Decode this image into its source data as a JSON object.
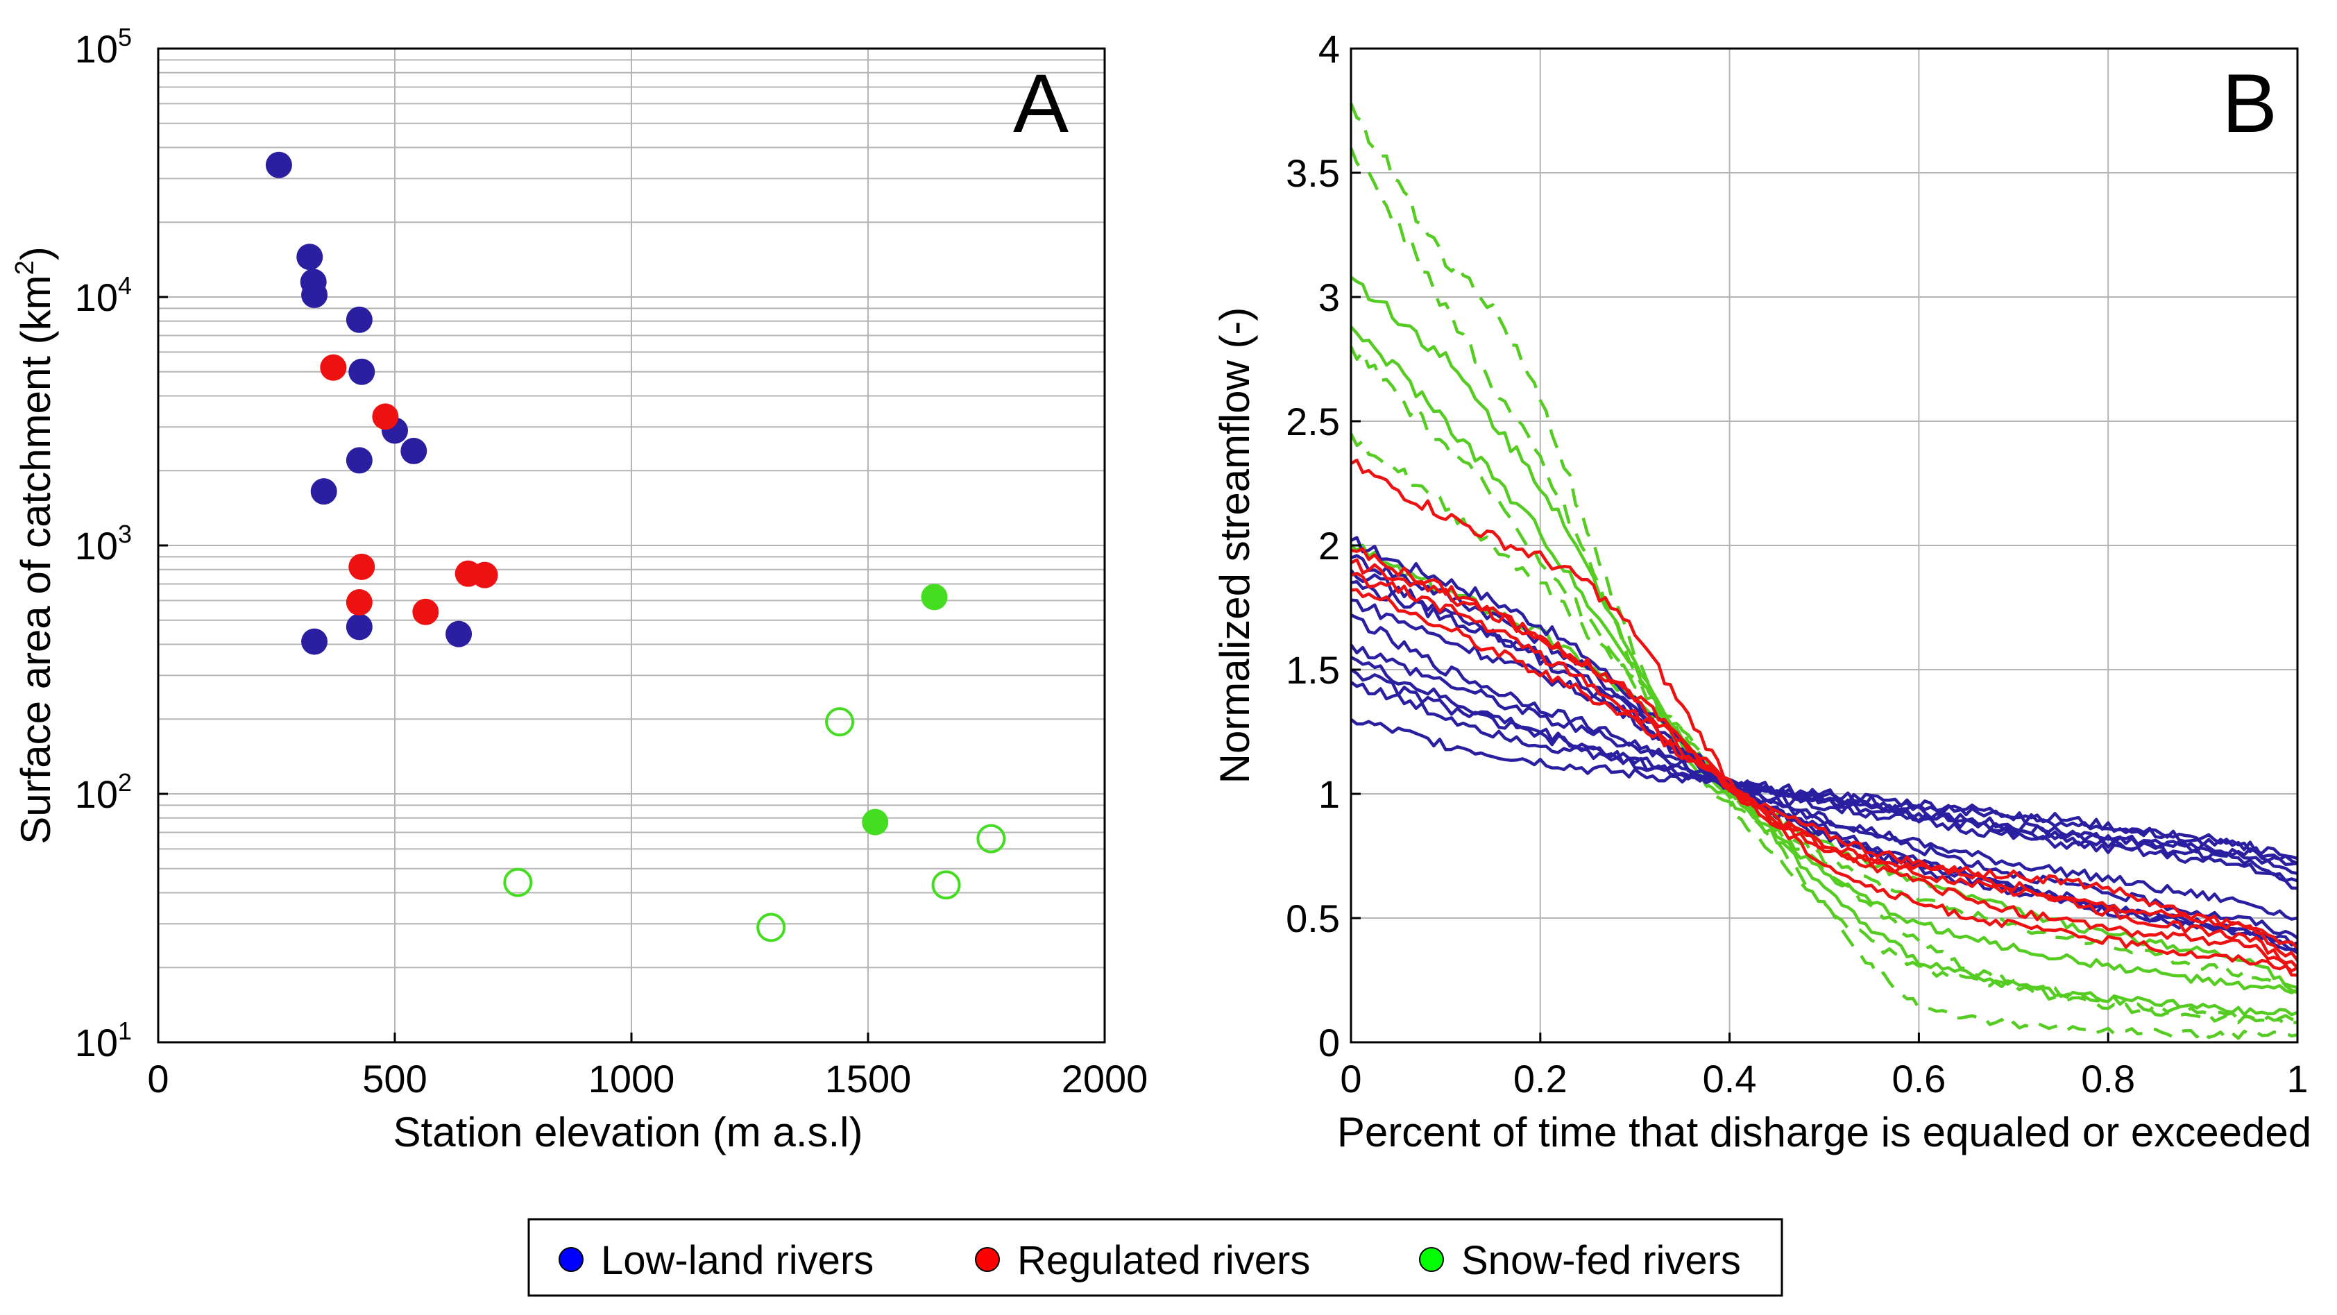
{
  "legend": {
    "items": [
      {
        "label": "Low-land rivers",
        "color": "#0000ff"
      },
      {
        "label": "Regulated rivers",
        "color": "#ff0000"
      },
      {
        "label": "Snow-fed rivers",
        "color": "#00ff00"
      }
    ]
  },
  "chart_data": [
    {
      "type": "scatter",
      "panel_label": "A",
      "xlabel": "Station elevation (m a.s.l)",
      "ylabel": "Surface area of catchment (km",
      "ylabel_sup": "2",
      "ylabel_end": ")",
      "xlim": [
        0,
        2000
      ],
      "ylim": [
        10,
        100000
      ],
      "yscale": "log",
      "xticks": [
        0,
        500,
        1000,
        1500,
        2000
      ],
      "xtick_labels": [
        "0",
        "500",
        "1000",
        "1500",
        "2000"
      ],
      "ytick_base": "10",
      "ytick_exponents": [
        "1",
        "2",
        "3",
        "4",
        "5"
      ],
      "grid": true,
      "series": [
        {
          "name": "Low-land rivers",
          "color": "#2a1fa0",
          "filled": true,
          "points": [
            [
              255,
              34000
            ],
            [
              320,
              14500
            ],
            [
              328,
              11500
            ],
            [
              330,
              10200
            ],
            [
              425,
              8100
            ],
            [
              430,
              5000
            ],
            [
              500,
              2900
            ],
            [
              540,
              2400
            ],
            [
              425,
              2200
            ],
            [
              350,
              1650
            ],
            [
              330,
              410
            ],
            [
              425,
              470
            ],
            [
              635,
              440
            ]
          ]
        },
        {
          "name": "Regulated rivers",
          "color": "#ee1111",
          "filled": true,
          "points": [
            [
              370,
              5200
            ],
            [
              480,
              3300
            ],
            [
              430,
              820
            ],
            [
              425,
              590
            ],
            [
              655,
              770
            ],
            [
              690,
              760
            ],
            [
              565,
              540
            ]
          ]
        },
        {
          "name": "Snow-fed rivers (filled)",
          "color": "#44dd22",
          "filled": true,
          "points": [
            [
              1640,
              620
            ],
            [
              1515,
              77
            ]
          ]
        },
        {
          "name": "Snow-fed rivers (open)",
          "color": "#44dd22",
          "filled": false,
          "points": [
            [
              1440,
              195
            ],
            [
              1760,
              66
            ],
            [
              760,
              44
            ],
            [
              1665,
              43
            ],
            [
              1295,
              29
            ]
          ]
        }
      ]
    },
    {
      "type": "line",
      "panel_label": "B",
      "xlabel": "Percent of time that disharge is equaled or exceeded",
      "ylabel": "Normalized streamflow (-)",
      "xlim": [
        0,
        1
      ],
      "ylim": [
        0,
        4
      ],
      "xticks": [
        0,
        0.2,
        0.4,
        0.6,
        0.8,
        1
      ],
      "xtick_labels": [
        "0",
        "0.2",
        "0.4",
        "0.6",
        "0.8",
        "1"
      ],
      "yticks": [
        0,
        0.5,
        1,
        1.5,
        2,
        2.5,
        3,
        3.5,
        4
      ],
      "ytick_labels": [
        "0",
        "0.5",
        "1",
        "1.5",
        "2",
        "2.5",
        "3",
        "3.5",
        "4"
      ],
      "grid": true,
      "x": [
        0,
        0.05,
        0.1,
        0.15,
        0.2,
        0.25,
        0.3,
        0.35,
        0.4,
        0.45,
        0.5,
        0.55,
        0.6,
        0.65,
        0.7,
        0.75,
        0.8,
        0.85,
        0.9,
        0.95,
        1.0
      ],
      "series": [
        {
          "group": "lowland",
          "color": "#2a1fa0",
          "dashed": false,
          "values": [
            2.02,
            1.93,
            1.86,
            1.78,
            1.68,
            1.55,
            1.38,
            1.2,
            1.03,
            0.92,
            0.83,
            0.76,
            0.7,
            0.65,
            0.61,
            0.57,
            0.53,
            0.49,
            0.46,
            0.43,
            0.38
          ]
        },
        {
          "group": "lowland",
          "color": "#2a1fa0",
          "dashed": false,
          "values": [
            1.95,
            1.88,
            1.8,
            1.72,
            1.62,
            1.5,
            1.35,
            1.18,
            1.02,
            0.93,
            0.86,
            0.79,
            0.73,
            0.68,
            0.63,
            0.59,
            0.55,
            0.51,
            0.48,
            0.45,
            0.4
          ]
        },
        {
          "group": "lowland",
          "color": "#2a1fa0",
          "dashed": false,
          "values": [
            1.85,
            1.78,
            1.71,
            1.64,
            1.56,
            1.46,
            1.33,
            1.17,
            1.02,
            0.95,
            0.9,
            0.85,
            0.8,
            0.76,
            0.72,
            0.69,
            0.66,
            0.62,
            0.59,
            0.56,
            0.5
          ]
        },
        {
          "group": "lowland",
          "color": "#2a1fa0",
          "dashed": false,
          "values": [
            1.78,
            1.7,
            1.62,
            1.55,
            1.48,
            1.4,
            1.3,
            1.15,
            1.02,
            0.98,
            0.95,
            0.92,
            0.89,
            0.86,
            0.83,
            0.8,
            0.78,
            0.76,
            0.73,
            0.71,
            0.62
          ]
        },
        {
          "group": "lowland",
          "color": "#2a1fa0",
          "dashed": false,
          "values": [
            1.72,
            1.6,
            1.5,
            1.42,
            1.35,
            1.28,
            1.2,
            1.12,
            1.05,
            1.01,
            0.98,
            0.95,
            0.93,
            0.9,
            0.87,
            0.85,
            0.82,
            0.8,
            0.78,
            0.76,
            0.72
          ]
        },
        {
          "group": "lowland",
          "color": "#2a1fa0",
          "dashed": false,
          "values": [
            1.55,
            1.46,
            1.38,
            1.31,
            1.25,
            1.19,
            1.14,
            1.09,
            1.04,
            1.01,
            0.98,
            0.95,
            0.92,
            0.89,
            0.86,
            0.84,
            0.82,
            0.8,
            0.78,
            0.75,
            0.68
          ]
        },
        {
          "group": "lowland",
          "color": "#2a1fa0",
          "dashed": false,
          "values": [
            1.5,
            1.42,
            1.35,
            1.29,
            1.23,
            1.18,
            1.13,
            1.08,
            1.04,
            1.0,
            0.97,
            0.94,
            0.91,
            0.88,
            0.85,
            0.82,
            0.8,
            0.78,
            0.76,
            0.73,
            0.65
          ]
        },
        {
          "group": "lowland",
          "color": "#2a1fa0",
          "dashed": false,
          "values": [
            1.45,
            1.38,
            1.31,
            1.25,
            1.2,
            1.16,
            1.12,
            1.08,
            1.04,
            1.01,
            0.99,
            0.97,
            0.95,
            0.93,
            0.91,
            0.88,
            0.86,
            0.84,
            0.82,
            0.79,
            0.74
          ]
        },
        {
          "group": "lowland",
          "color": "#2a1fa0",
          "dashed": false,
          "values": [
            1.3,
            1.25,
            1.2,
            1.16,
            1.13,
            1.1,
            1.08,
            1.06,
            1.04,
            1.02,
            1.0,
            0.98,
            0.96,
            0.94,
            0.92,
            0.9,
            0.87,
            0.84,
            0.81,
            0.78,
            0.72
          ]
        },
        {
          "group": "lowland",
          "color": "#2a1fa0",
          "dashed": false,
          "values": [
            1.9,
            1.82,
            1.73,
            1.64,
            1.54,
            1.43,
            1.3,
            1.15,
            1.02,
            0.92,
            0.84,
            0.77,
            0.71,
            0.66,
            0.62,
            0.58,
            0.54,
            0.5,
            0.47,
            0.44,
            0.36
          ]
        },
        {
          "group": "lowland",
          "color": "#2a1fa0",
          "dashed": false,
          "values": [
            1.6,
            1.52,
            1.45,
            1.38,
            1.31,
            1.25,
            1.19,
            1.12,
            1.04,
            0.97,
            0.9,
            0.84,
            0.78,
            0.73,
            0.68,
            0.64,
            0.6,
            0.56,
            0.52,
            0.49,
            0.42
          ]
        },
        {
          "group": "regulated",
          "color": "#ee1111",
          "dashed": false,
          "values": [
            2.33,
            2.22,
            2.12,
            2.03,
            1.95,
            1.85,
            1.65,
            1.35,
            1.05,
            0.92,
            0.84,
            0.77,
            0.72,
            0.68,
            0.63,
            0.58,
            0.52,
            0.48,
            0.45,
            0.42,
            0.3
          ]
        },
        {
          "group": "regulated",
          "color": "#ee1111",
          "dashed": false,
          "values": [
            1.93,
            1.87,
            1.8,
            1.72,
            1.63,
            1.52,
            1.4,
            1.22,
            1.03,
            0.9,
            0.8,
            0.73,
            0.68,
            0.64,
            0.61,
            0.58,
            0.55,
            0.52,
            0.49,
            0.46,
            0.38
          ]
        },
        {
          "group": "regulated",
          "color": "#ee1111",
          "dashed": false,
          "values": [
            1.88,
            1.82,
            1.75,
            1.66,
            1.56,
            1.45,
            1.32,
            1.17,
            1.02,
            0.88,
            0.78,
            0.72,
            0.7,
            0.69,
            0.67,
            0.65,
            0.62,
            0.55,
            0.5,
            0.46,
            0.33
          ]
        },
        {
          "group": "regulated",
          "color": "#ee1111",
          "dashed": false,
          "values": [
            1.82,
            1.75,
            1.67,
            1.58,
            1.49,
            1.4,
            1.3,
            1.16,
            1.02,
            0.87,
            0.72,
            0.62,
            0.56,
            0.51,
            0.47,
            0.44,
            0.41,
            0.38,
            0.35,
            0.33,
            0.3
          ]
        },
        {
          "group": "regulated",
          "color": "#ee1111",
          "dashed": false,
          "values": [
            1.98,
            1.9,
            1.82,
            1.73,
            1.63,
            1.52,
            1.38,
            1.2,
            1.02,
            0.89,
            0.79,
            0.71,
            0.64,
            0.58,
            0.53,
            0.49,
            0.46,
            0.43,
            0.41,
            0.39,
            0.27
          ]
        },
        {
          "group": "snow",
          "color": "#55cc22",
          "dashed": false,
          "values": [
            3.08,
            2.92,
            2.75,
            2.5,
            2.25,
            1.9,
            1.55,
            1.2,
            1.0,
            0.84,
            0.68,
            0.56,
            0.48,
            0.42,
            0.38,
            0.34,
            0.31,
            0.28,
            0.25,
            0.22,
            0.21
          ]
        },
        {
          "group": "snow",
          "color": "#55cc22",
          "dashed": false,
          "values": [
            2.88,
            2.7,
            2.5,
            2.28,
            2.05,
            1.78,
            1.5,
            1.22,
            1.0,
            0.82,
            0.62,
            0.45,
            0.33,
            0.27,
            0.23,
            0.2,
            0.18,
            0.16,
            0.14,
            0.12,
            0.12
          ]
        },
        {
          "group": "snow",
          "color": "#55cc22",
          "dashed": false,
          "values": [
            2.0,
            1.9,
            1.82,
            1.74,
            1.65,
            1.52,
            1.38,
            1.2,
            1.02,
            0.9,
            0.8,
            0.72,
            0.65,
            0.59,
            0.53,
            0.48,
            0.44,
            0.4,
            0.37,
            0.34,
            0.2
          ]
        },
        {
          "group": "snow",
          "color": "#55cc22",
          "dashed": true,
          "values": [
            3.78,
            3.45,
            3.15,
            2.95,
            2.6,
            2.05,
            1.55,
            1.15,
            0.95,
            0.75,
            0.55,
            0.3,
            0.15,
            0.1,
            0.07,
            0.06,
            0.05,
            0.04,
            0.03,
            0.03,
            0.03
          ]
        },
        {
          "group": "snow",
          "color": "#55cc22",
          "dashed": true,
          "values": [
            3.6,
            3.3,
            2.95,
            2.65,
            2.35,
            1.95,
            1.5,
            1.15,
            0.97,
            0.8,
            0.55,
            0.4,
            0.3,
            0.25,
            0.22,
            0.18,
            0.15,
            0.12,
            0.1,
            0.09,
            0.08
          ]
        },
        {
          "group": "snow",
          "color": "#55cc22",
          "dashed": true,
          "values": [
            2.8,
            2.6,
            2.4,
            2.2,
            1.95,
            1.7,
            1.45,
            1.25,
            1.0,
            0.86,
            0.74,
            0.65,
            0.58,
            0.52,
            0.47,
            0.43,
            0.39,
            0.35,
            0.31,
            0.27,
            0.22
          ]
        },
        {
          "group": "snow",
          "color": "#55cc22",
          "dashed": true,
          "values": [
            2.45,
            2.3,
            2.15,
            2.0,
            1.85,
            1.65,
            1.45,
            1.25,
            1.0,
            0.85,
            0.7,
            0.55,
            0.4,
            0.3,
            0.24,
            0.2,
            0.17,
            0.14,
            0.12,
            0.1,
            0.09
          ]
        }
      ]
    }
  ]
}
